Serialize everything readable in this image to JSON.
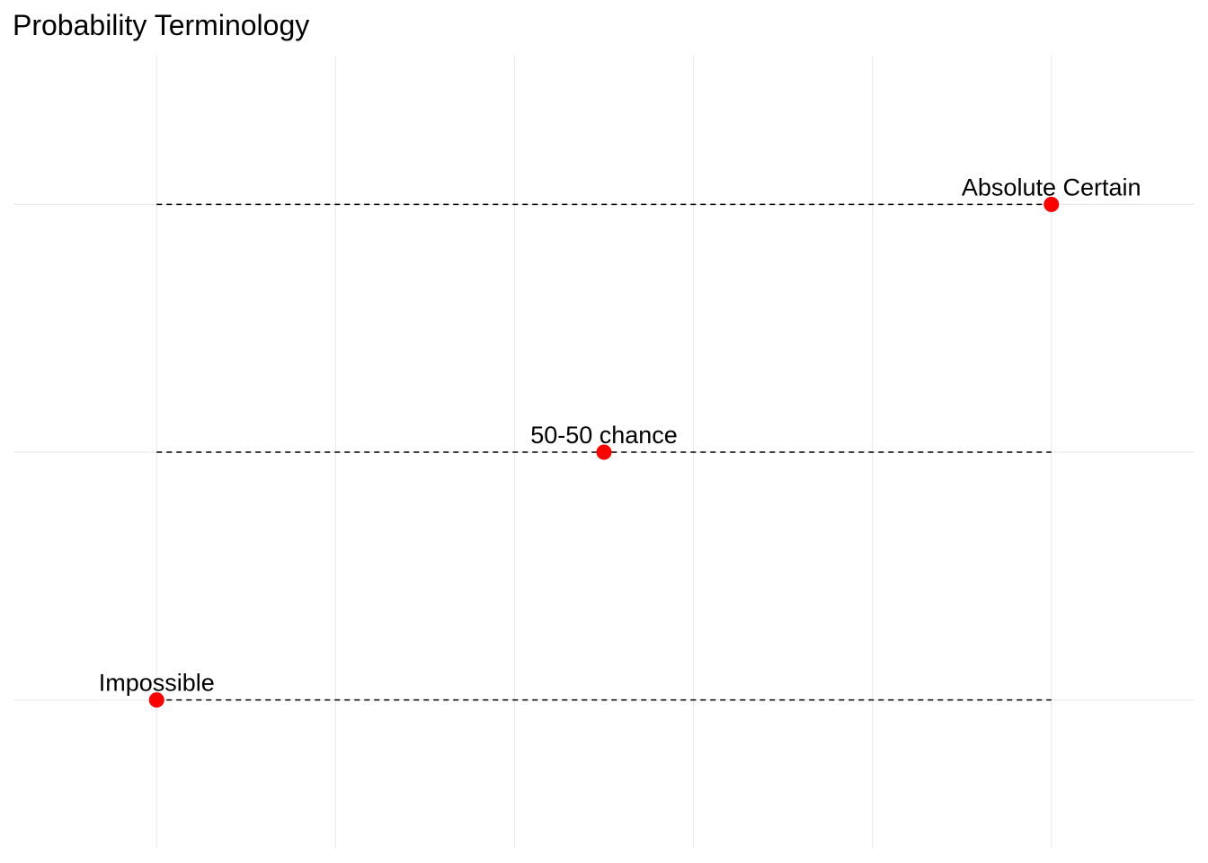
{
  "chart_data": {
    "type": "scatter",
    "title": "Probability Terminology",
    "xlabel": "",
    "ylabel": "",
    "xlim": [
      -0.08,
      0.58
    ],
    "ylim": [
      -0.3,
      1.3
    ],
    "grid": true,
    "legend": "none",
    "colors": {
      "point": "#ff0000",
      "dashed_line": "#000000",
      "grid": "#ebebeb",
      "background": "#ffffff"
    },
    "x_gridlines": [
      0,
      0.1,
      0.2,
      0.3,
      0.4,
      0.5
    ],
    "y_gridlines": [
      0,
      0.5,
      1
    ],
    "reference_lines": {
      "style": "dashed",
      "x_start": 0,
      "x_end": 0.5,
      "y": [
        0,
        0.5,
        1
      ]
    },
    "points": [
      {
        "x": 0,
        "y": 0,
        "label": "Impossible"
      },
      {
        "x": 0.25,
        "y": 0.5,
        "label": "50-50 chance"
      },
      {
        "x": 0.5,
        "y": 1,
        "label": "Absolute Certain"
      }
    ]
  }
}
